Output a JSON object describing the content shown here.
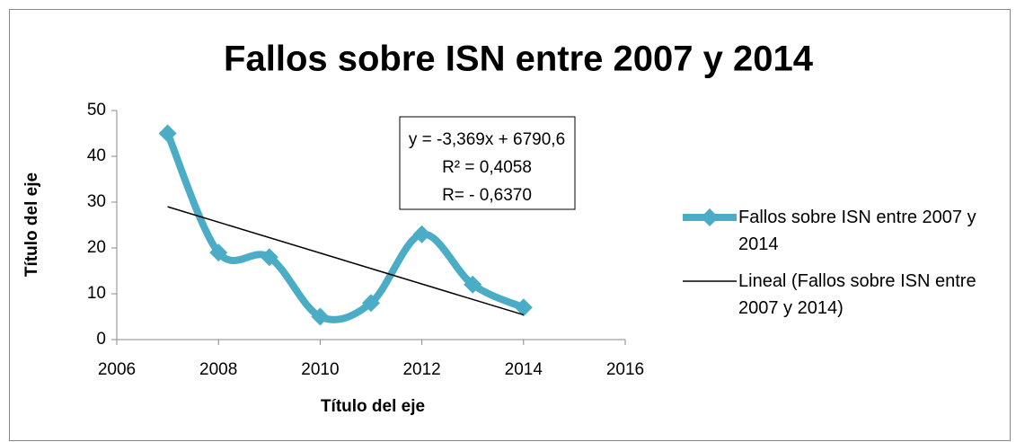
{
  "chart_data": {
    "type": "line",
    "title": "Fallos sobre ISN entre 2007 y 2014",
    "x_label": "Título del eje",
    "y_label": "Título del eje",
    "x": [
      2007,
      2008,
      2009,
      2010,
      2011,
      2012,
      2013,
      2014
    ],
    "series": [
      {
        "name": "Fallos sobre ISN entre 2007 y 2014",
        "color": "#4bacc6",
        "smooth": true,
        "values": [
          45,
          19,
          18,
          5,
          8,
          23,
          12,
          7
        ]
      }
    ],
    "trendline": {
      "name": "Lineal (Fallos sobre ISN entre 2007 y 2014)",
      "color": "#000000",
      "x": [
        2007,
        2014
      ],
      "values": [
        29.0,
        5.4
      ]
    },
    "annotation": [
      "y = -3,369x + 6790,6",
      "R² = 0,4058",
      "R= - 0,6370"
    ],
    "xlim": [
      2006,
      2016
    ],
    "xticks": [
      2006,
      2008,
      2010,
      2012,
      2014,
      2016
    ],
    "ylim": [
      0,
      50
    ],
    "yticks": [
      0,
      10,
      20,
      30,
      40,
      50
    ]
  }
}
